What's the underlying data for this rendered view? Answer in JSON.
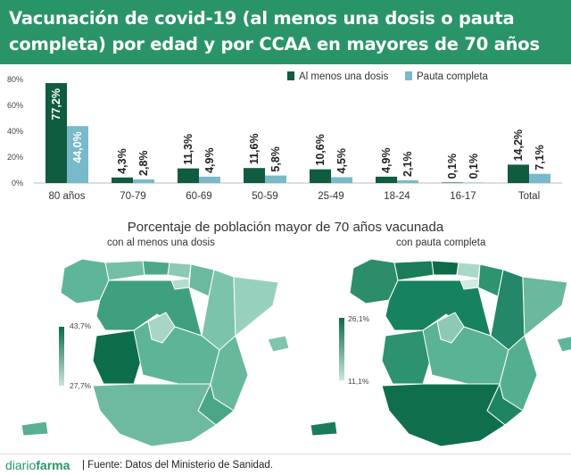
{
  "header": {
    "title_line1": "Vacunación de covid-19 (al menos una dosis o pauta",
    "title_line2": "completa) por edad y por CCAA en mayores de 70 años"
  },
  "chart_data": [
    {
      "type": "bar",
      "categories": [
        "80 años",
        "70-79",
        "60-69",
        "50-59",
        "25-49",
        "18-24",
        "16-17",
        "Total"
      ],
      "series": [
        {
          "name": "Al menos una dosis",
          "values": [
            77.2,
            4.3,
            11.3,
            11.6,
            10.6,
            4.9,
            0.1,
            14.2
          ],
          "labels": [
            "77,2%",
            "4,3%",
            "11,3%",
            "11,6%",
            "10,6%",
            "4,9%",
            "0,1%",
            "14,2%"
          ],
          "color": "#0f5c3f"
        },
        {
          "name": "Pauta completa",
          "values": [
            44.0,
            2.8,
            4.9,
            5.8,
            4.5,
            2.1,
            0.1,
            7.1
          ],
          "labels": [
            "44,0%",
            "2,8%",
            "4,9%",
            "5,8%",
            "4,5%",
            "2,1%",
            "0,1%",
            "7,1%"
          ],
          "color": "#79b9c9"
        }
      ],
      "ylim": [
        0,
        80
      ],
      "yticks": [
        "0%",
        "20%",
        "40%",
        "60%",
        "80%"
      ],
      "ytick_values": [
        0,
        20,
        40,
        60,
        80
      ],
      "legend_position": "top-right",
      "grid": false
    }
  ],
  "maps": {
    "title": "Porcentaje de población mayor de 70 años vacunada",
    "left": {
      "subtitle": "con al menos una dosis",
      "scale_max": "43,7%",
      "scale_min": "27,7%"
    },
    "right": {
      "subtitle": "con pauta completa",
      "scale_max": "26,1%",
      "scale_min": "11,1%"
    }
  },
  "footer": {
    "brand_light": "diario",
    "brand_bold": "farma",
    "source": "| Fuente: Datos del Ministerio de Sanidad."
  },
  "colors": {
    "banner": "#2a9469",
    "dark_green": "#0f5c3f",
    "light_blue": "#79b9c9"
  }
}
